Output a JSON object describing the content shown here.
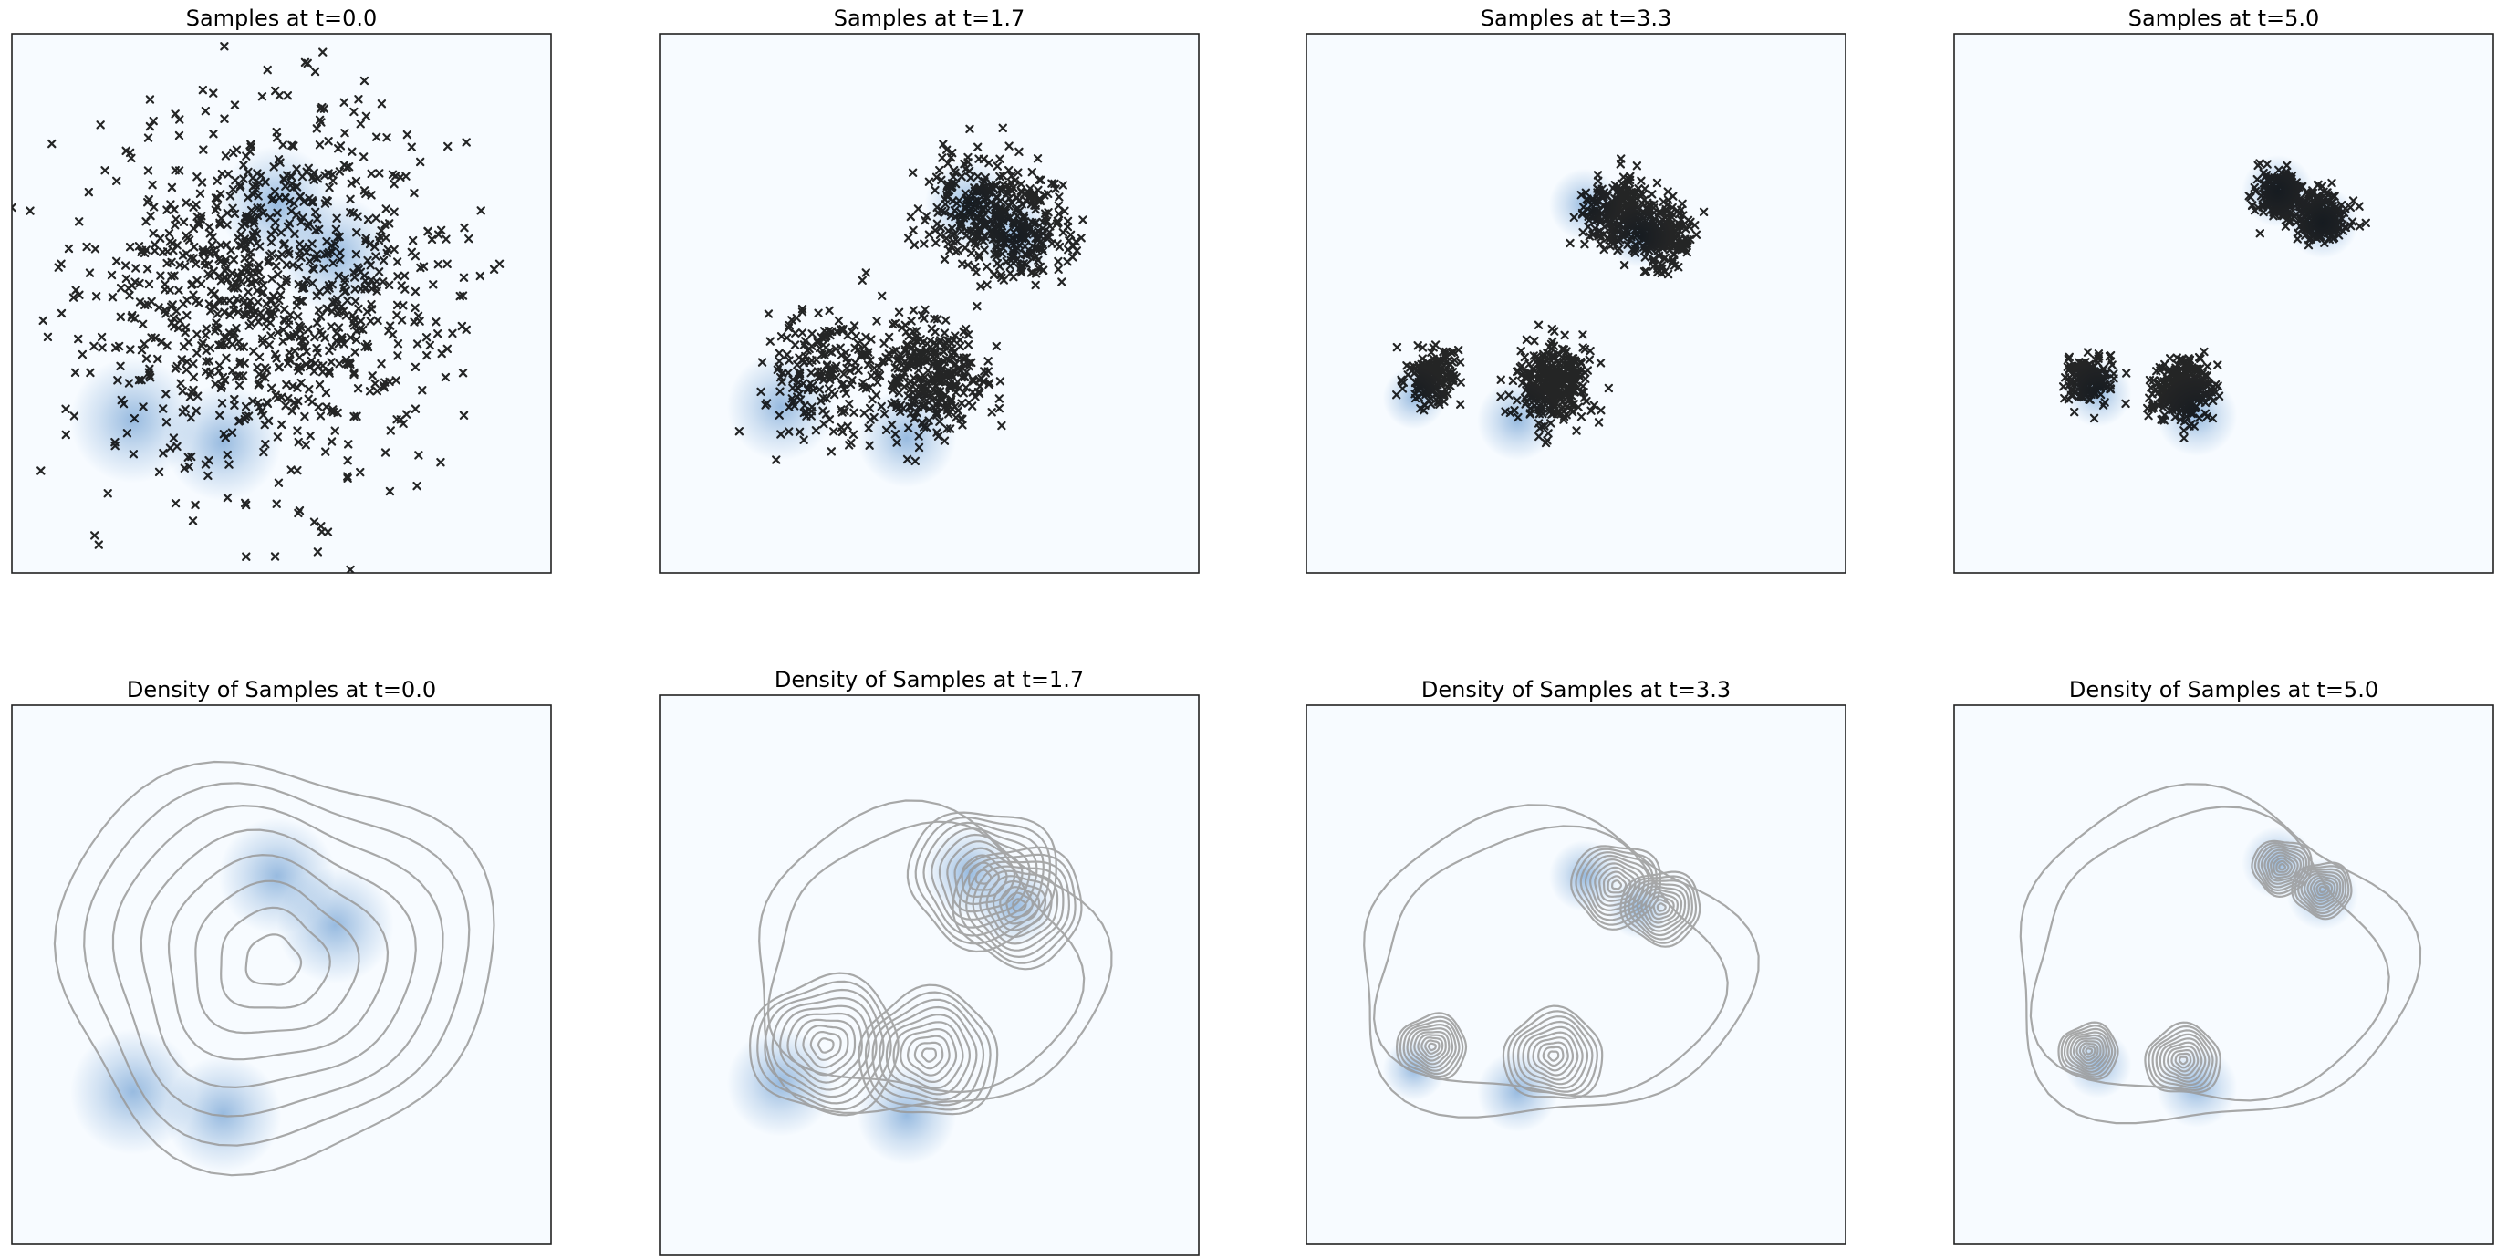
{
  "chart_data": [
    {
      "type": "scatter",
      "title": "Samples at t=0.0",
      "n_points": 1000,
      "marker": "x",
      "marker_color": "#000000",
      "background_density_cmap": "Blues",
      "axes_visible": false,
      "clusters": [
        {
          "center": [
            -0.2,
            0.3
          ],
          "spread": 2.2,
          "fraction": 1.0
        }
      ]
    },
    {
      "type": "scatter",
      "title": "Samples at t=1.7",
      "n_points": 1000,
      "marker": "x",
      "marker_color": "#000000",
      "background_density_cmap": "Blues",
      "axes_visible": false,
      "clusters": [
        {
          "center": [
            1.2,
            2.1
          ],
          "spread": 0.75,
          "fraction": 0.24
        },
        {
          "center": [
            2.0,
            1.5
          ],
          "spread": 0.65,
          "fraction": 0.22
        },
        {
          "center": [
            -2.3,
            -1.5
          ],
          "spread": 0.75,
          "fraction": 0.2
        },
        {
          "center": [
            0.0,
            -1.7
          ],
          "spread": 0.7,
          "fraction": 0.34
        }
      ]
    },
    {
      "type": "scatter",
      "title": "Samples at t=3.3",
      "n_points": 1000,
      "marker": "x",
      "marker_color": "#000000",
      "background_density_cmap": "Blues",
      "axes_visible": false,
      "clusters": [
        {
          "center": [
            0.9,
            2.0
          ],
          "spread": 0.45,
          "fraction": 0.26
        },
        {
          "center": [
            1.9,
            1.5
          ],
          "spread": 0.4,
          "fraction": 0.22
        },
        {
          "center": [
            -3.2,
            -1.6
          ],
          "spread": 0.35,
          "fraction": 0.17
        },
        {
          "center": [
            -0.5,
            -1.8
          ],
          "spread": 0.5,
          "fraction": 0.35
        }
      ]
    },
    {
      "type": "scatter",
      "title": "Samples at t=5.0",
      "n_points": 1000,
      "marker": "x",
      "marker_color": "#000000",
      "background_density_cmap": "Blues",
      "axes_visible": false,
      "clusters": [
        {
          "center": [
            1.3,
            2.4
          ],
          "spread": 0.3,
          "fraction": 0.27
        },
        {
          "center": [
            2.2,
            1.9
          ],
          "spread": 0.3,
          "fraction": 0.23
        },
        {
          "center": [
            -3.0,
            -1.7
          ],
          "spread": 0.3,
          "fraction": 0.18
        },
        {
          "center": [
            -0.9,
            -1.9
          ],
          "spread": 0.38,
          "fraction": 0.32
        }
      ]
    },
    {
      "type": "contour",
      "title": "Density of Samples at t=0.0",
      "contour_levels": 8,
      "contour_color": "#9a9a9a",
      "background_density_cmap": "Blues",
      "axes_visible": false,
      "clusters": [
        {
          "center": [
            -0.2,
            0.3
          ],
          "spread": 2.2,
          "fraction": 1.0
        }
      ]
    },
    {
      "type": "contour",
      "title": "Density of Samples at t=1.7",
      "contour_levels": 10,
      "contour_color": "#9a9a9a",
      "background_density_cmap": "Blues",
      "axes_visible": false,
      "clusters": [
        {
          "center": [
            1.2,
            2.1
          ],
          "spread": 0.75,
          "fraction": 0.24
        },
        {
          "center": [
            2.0,
            1.5
          ],
          "spread": 0.65,
          "fraction": 0.22
        },
        {
          "center": [
            -2.3,
            -1.5
          ],
          "spread": 0.75,
          "fraction": 0.2
        },
        {
          "center": [
            0.0,
            -1.7
          ],
          "spread": 0.7,
          "fraction": 0.34
        }
      ]
    },
    {
      "type": "contour",
      "title": "Density of Samples at t=3.3",
      "contour_levels": 10,
      "contour_color": "#9a9a9a",
      "background_density_cmap": "Blues",
      "axes_visible": false,
      "clusters": [
        {
          "center": [
            0.9,
            2.0
          ],
          "spread": 0.45,
          "fraction": 0.26
        },
        {
          "center": [
            1.9,
            1.5
          ],
          "spread": 0.4,
          "fraction": 0.22
        },
        {
          "center": [
            -3.2,
            -1.6
          ],
          "spread": 0.35,
          "fraction": 0.17
        },
        {
          "center": [
            -0.5,
            -1.8
          ],
          "spread": 0.5,
          "fraction": 0.35
        }
      ]
    },
    {
      "type": "contour",
      "title": "Density of Samples at t=5.0",
      "contour_levels": 10,
      "contour_color": "#9a9a9a",
      "background_density_cmap": "Blues",
      "axes_visible": false,
      "clusters": [
        {
          "center": [
            1.3,
            2.4
          ],
          "spread": 0.3,
          "fraction": 0.27
        },
        {
          "center": [
            2.2,
            1.9
          ],
          "spread": 0.3,
          "fraction": 0.23
        },
        {
          "center": [
            -3.0,
            -1.7
          ],
          "spread": 0.3,
          "fraction": 0.18
        },
        {
          "center": [
            -0.9,
            -1.9
          ],
          "spread": 0.38,
          "fraction": 0.32
        }
      ]
    }
  ],
  "blob_color": "#4a86c6",
  "density_blobs": [
    [
      [
        -0.1,
        2.2,
        1.3
      ],
      [
        1.2,
        1.1,
        1.3
      ],
      [
        -3.3,
        -2.6,
        1.4
      ],
      [
        -1.3,
        -3.1,
        1.3
      ]
    ],
    [
      [
        0.9,
        2.2,
        1.0
      ],
      [
        1.9,
        1.5,
        0.9
      ],
      [
        -3.3,
        -2.3,
        1.2
      ],
      [
        -0.5,
        -3.0,
        1.1
      ]
    ],
    [
      [
        0.2,
        2.2,
        0.8
      ],
      [
        1.4,
        1.5,
        0.7
      ],
      [
        -3.6,
        -2.1,
        0.7
      ],
      [
        -1.3,
        -2.6,
        0.9
      ]
    ],
    [
      [
        1.2,
        2.5,
        0.8
      ],
      [
        2.2,
        1.8,
        0.8
      ],
      [
        -2.8,
        -2.0,
        0.75
      ],
      [
        -0.6,
        -2.5,
        0.9
      ]
    ]
  ]
}
